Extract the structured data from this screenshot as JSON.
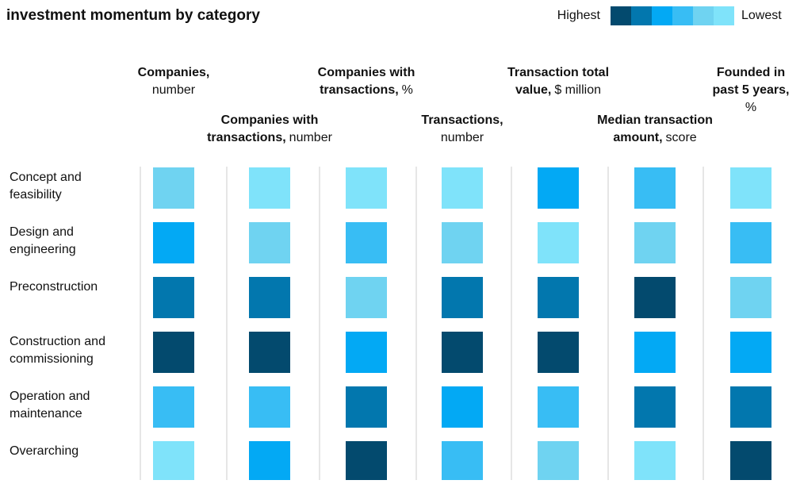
{
  "chart_data": {
    "type": "heatmap",
    "title": "investment momentum by category",
    "legend": {
      "high": "Highest",
      "low": "Lowest"
    },
    "colors": [
      "#034a6e",
      "#0277ae",
      "#03a9f4",
      "#38bdf4",
      "#6fd3f1",
      "#7fe3fa"
    ],
    "columns": [
      {
        "lines": [
          [
            {
              "text": "Companies,",
              "bold": true
            }
          ],
          [
            {
              "text": "number"
            }
          ]
        ]
      },
      {
        "lines": [
          [
            {
              "text": "Companies with",
              "bold": true
            }
          ],
          [
            {
              "text": "transactions,",
              "bold": true
            },
            {
              "text": "number"
            }
          ]
        ]
      },
      {
        "lines": [
          [
            {
              "text": "Companies with",
              "bold": true
            }
          ],
          [
            {
              "text": "transactions,",
              "bold": true
            },
            {
              "text": "%"
            }
          ]
        ]
      },
      {
        "lines": [
          [
            {
              "text": "Transactions,",
              "bold": true
            }
          ],
          [
            {
              "text": "number"
            }
          ]
        ]
      },
      {
        "lines": [
          [
            {
              "text": "Transaction total",
              "bold": true
            }
          ],
          [
            {
              "text": "value,",
              "bold": true
            },
            {
              "text": "$ million"
            }
          ]
        ]
      },
      {
        "lines": [
          [
            {
              "text": "Median transaction",
              "bold": true
            }
          ],
          [
            {
              "text": "amount,",
              "bold": true
            },
            {
              "text": "score"
            }
          ]
        ]
      },
      {
        "lines": [
          [
            {
              "text": "Founded in",
              "bold": true
            }
          ],
          [
            {
              "text": "past 5 years,",
              "bold": true
            }
          ],
          [
            {
              "text": "%"
            }
          ]
        ]
      }
    ],
    "rows": [
      {
        "lines": [
          "Concept and",
          "feasibility"
        ],
        "values": [
          5,
          6,
          6,
          6,
          3,
          4,
          6
        ]
      },
      {
        "lines": [
          "Design and",
          "engineering"
        ],
        "values": [
          3,
          5,
          4,
          5,
          6,
          5,
          4
        ]
      },
      {
        "lines": [
          "Preconstruction"
        ],
        "values": [
          2,
          2,
          5,
          2,
          2,
          1,
          5
        ]
      },
      {
        "lines": [
          "Construction and",
          "commissioning"
        ],
        "values": [
          1,
          1,
          3,
          1,
          1,
          3,
          3
        ]
      },
      {
        "lines": [
          "Operation and",
          "maintenance"
        ],
        "values": [
          4,
          4,
          2,
          3,
          4,
          2,
          2
        ]
      },
      {
        "lines": [
          "Overarching"
        ],
        "values": [
          6,
          3,
          1,
          4,
          5,
          6,
          1
        ]
      }
    ]
  }
}
